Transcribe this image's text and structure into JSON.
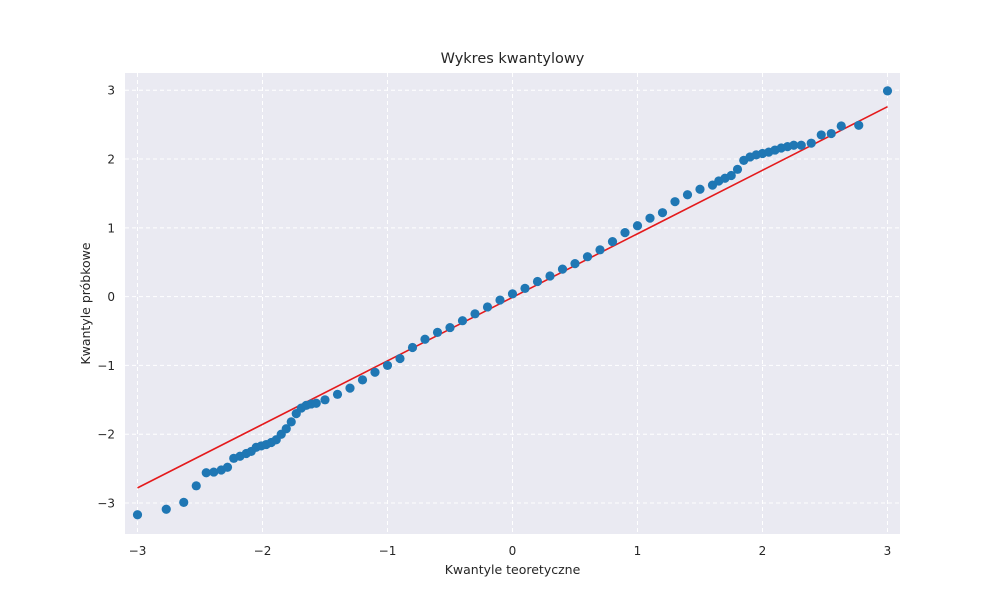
{
  "chart_data": {
    "type": "scatter",
    "title": "Wykres kwantylowy",
    "xlabel": "Kwantyle teoretyczne",
    "ylabel": "Kwantyle próbkowe",
    "xlim": [
      -3.1,
      3.1
    ],
    "ylim": [
      -3.45,
      3.25
    ],
    "xticks": [
      -3,
      -2,
      -1,
      0,
      1,
      2,
      3
    ],
    "yticks": [
      -3,
      -2,
      -1,
      0,
      1,
      2,
      3
    ],
    "xtick_labels": [
      "−3",
      "−2",
      "−1",
      "0",
      "1",
      "2",
      "3"
    ],
    "ytick_labels": [
      "−3",
      "−2",
      "−1",
      "0",
      "1",
      "2",
      "3"
    ],
    "grid": true,
    "colors": {
      "background": "#eaeaf2",
      "grid": "#ffffff",
      "points": "#1f77b4",
      "fit_line": "#e41a1c"
    },
    "fit_line": {
      "x": [
        -3.0,
        3.0
      ],
      "y": [
        -2.78,
        2.76
      ]
    },
    "points": {
      "x": [
        -3.0,
        -2.77,
        -2.63,
        -2.53,
        -2.45,
        -2.39,
        -2.33,
        -2.28,
        -2.23,
        -2.18,
        -2.13,
        -2.09,
        -2.05,
        -2.01,
        -1.97,
        -1.93,
        -1.89,
        -1.85,
        -1.81,
        -1.77,
        -1.73,
        -1.69,
        -1.65,
        -1.61,
        -1.57,
        -1.5,
        -1.4,
        -1.3,
        -1.2,
        -1.1,
        -1.0,
        -0.9,
        -0.8,
        -0.7,
        -0.6,
        -0.5,
        -0.4,
        -0.3,
        -0.2,
        -0.1,
        0.0,
        0.1,
        0.2,
        0.3,
        0.4,
        0.5,
        0.6,
        0.7,
        0.8,
        0.9,
        1.0,
        1.1,
        1.2,
        1.3,
        1.4,
        1.5,
        1.6,
        1.65,
        1.7,
        1.75,
        1.8,
        1.85,
        1.9,
        1.95,
        2.0,
        2.05,
        2.1,
        2.15,
        2.2,
        2.25,
        2.31,
        2.39,
        2.47,
        2.55,
        2.63,
        2.77,
        3.0
      ],
      "y": [
        -3.17,
        -3.09,
        -2.99,
        -2.75,
        -2.56,
        -2.55,
        -2.52,
        -2.48,
        -2.35,
        -2.32,
        -2.28,
        -2.25,
        -2.19,
        -2.17,
        -2.15,
        -2.12,
        -2.08,
        -2.0,
        -1.92,
        -1.82,
        -1.7,
        -1.62,
        -1.58,
        -1.56,
        -1.55,
        -1.5,
        -1.42,
        -1.33,
        -1.21,
        -1.1,
        -1.0,
        -0.9,
        -0.74,
        -0.62,
        -0.52,
        -0.45,
        -0.35,
        -0.25,
        -0.15,
        -0.05,
        0.04,
        0.12,
        0.22,
        0.3,
        0.4,
        0.48,
        0.58,
        0.68,
        0.8,
        0.93,
        1.03,
        1.14,
        1.22,
        1.38,
        1.48,
        1.56,
        1.62,
        1.68,
        1.72,
        1.76,
        1.85,
        1.98,
        2.03,
        2.06,
        2.08,
        2.1,
        2.13,
        2.16,
        2.18,
        2.2,
        2.2,
        2.23,
        2.35,
        2.37,
        2.48,
        2.49,
        2.99
      ]
    }
  }
}
